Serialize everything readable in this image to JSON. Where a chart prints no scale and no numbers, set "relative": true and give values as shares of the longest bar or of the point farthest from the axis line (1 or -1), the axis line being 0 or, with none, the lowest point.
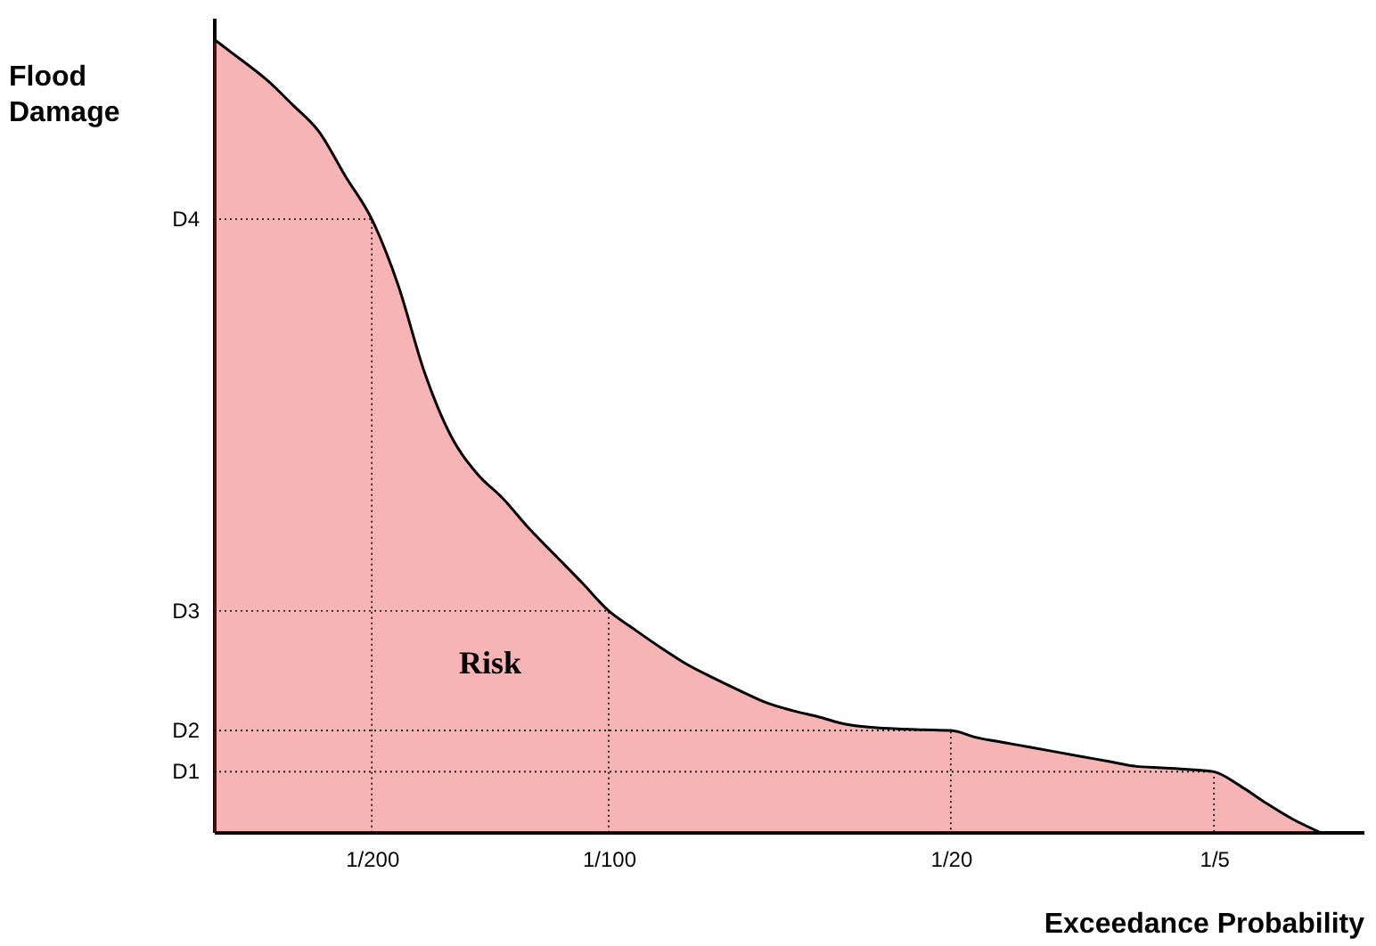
{
  "chart_data": {
    "type": "area",
    "relative": true,
    "xlabel": "Exceedance Probability",
    "ylabel": "Flood Damage",
    "categories": [
      null,
      null,
      null,
      null,
      null,
      null,
      "1/200",
      null,
      null,
      null,
      null,
      null,
      null,
      null,
      null,
      "1/100",
      null,
      null,
      null,
      null,
      null,
      null,
      null,
      null,
      null,
      null,
      null,
      null,
      "1/20",
      null,
      null,
      null,
      null,
      null,
      null,
      null,
      null,
      null,
      "1/5",
      null,
      null,
      null,
      null
    ],
    "series": [
      {
        "color": "#e8282b",
        "values": [
          1,
          0.975,
          0.949,
          0.917,
          0.883,
          0.827,
          0.773,
          0.69,
          0.58,
          0.5,
          0.452,
          0.42,
          0.382,
          0.348,
          0.314,
          0.279,
          0.255,
          0.232,
          0.211,
          0.194,
          0.178,
          0.163,
          0.153,
          0.145,
          0.136,
          0.132,
          0.13,
          0.129,
          0.128,
          0.119,
          0.113,
          0.107,
          0.101,
          0.095,
          0.089,
          0.083,
          0.081,
          0.079,
          0.076,
          0.058,
          0.036,
          0.016,
          0
        ]
      }
    ],
    "ref_lines": [
      {
        "axis": "y",
        "value": 0.773,
        "label": "D4",
        "line_style": "dotted"
      },
      {
        "axis": "y",
        "value": 0.279,
        "label": "D3",
        "line_style": "dotted"
      },
      {
        "axis": "y",
        "value": 0.128,
        "label": "D2",
        "line_style": "dotted"
      },
      {
        "axis": "y",
        "value": 0.076,
        "label": "D1",
        "line_style": "dotted"
      }
    ],
    "annotations": [
      "Risk"
    ],
    "grid": false
  }
}
